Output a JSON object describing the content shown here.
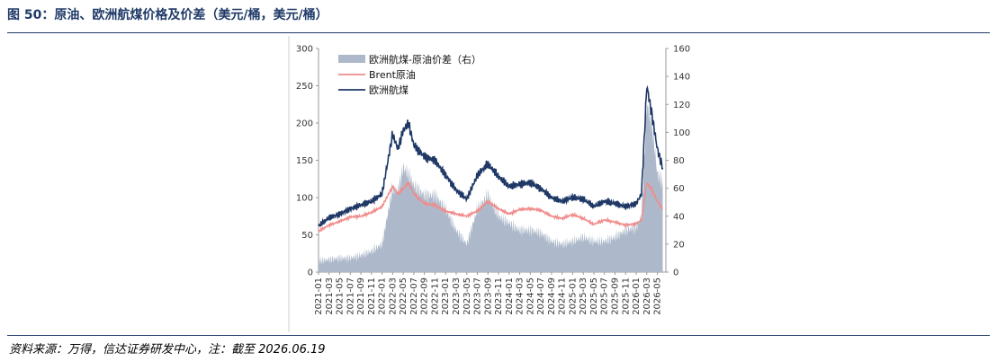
{
  "figure": {
    "title": "图 50：原油、欧洲航煤价格及价差（美元/桶，美元/桶）",
    "source": "资料来源：万得，信达证券研发中心，注：截至 2026.06.19"
  },
  "chart_data": {
    "type": "line",
    "x_tick_labels": [
      "2021-01",
      "2021-03",
      "2021-05",
      "2021-07",
      "2021-09",
      "2021-11",
      "2022-01",
      "2022-03",
      "2022-05",
      "2022-07",
      "2022-09",
      "2022-11",
      "2023-01",
      "2023-03",
      "2023-05",
      "2023-07",
      "2023-09",
      "2023-11",
      "2024-01",
      "2024-03",
      "2024-05",
      "2024-07",
      "2024-09",
      "2024-11",
      "2025-01",
      "2025-03",
      "2025-05",
      "2025-07",
      "2025-09",
      "2025-11",
      "2026-01",
      "2026-03",
      "2026-05"
    ],
    "left_axis": {
      "ylim": [
        0,
        300
      ],
      "ticks": [
        "0",
        "50",
        "100",
        "150",
        "200",
        "250",
        "300"
      ]
    },
    "right_axis": {
      "ylim": [
        0,
        160
      ],
      "ticks": [
        "0",
        "20",
        "40",
        "60",
        "80",
        "100",
        "120",
        "140",
        "160"
      ]
    },
    "legend_placement": "top-left",
    "series": [
      {
        "name": "欧洲航煤-原油价差（右）",
        "type": "area",
        "axis": "right",
        "color": "#adb9ca",
        "x": [
          "2021-01",
          "2021-03",
          "2021-05",
          "2021-07",
          "2021-09",
          "2021-11",
          "2022-01",
          "2022-03",
          "2022-04",
          "2022-05",
          "2022-06",
          "2022-07",
          "2022-09",
          "2022-11",
          "2023-01",
          "2023-03",
          "2023-05",
          "2023-07",
          "2023-09",
          "2023-11",
          "2024-01",
          "2024-03",
          "2024-05",
          "2024-07",
          "2024-09",
          "2024-11",
          "2025-01",
          "2025-03",
          "2025-05",
          "2025-07",
          "2025-09",
          "2025-11",
          "2026-01",
          "2026-02",
          "2026-03",
          "2026-04",
          "2026-05",
          "2026-06"
        ],
        "values": [
          8,
          9,
          10,
          10,
          12,
          15,
          20,
          60,
          58,
          75,
          70,
          62,
          55,
          55,
          45,
          30,
          20,
          45,
          55,
          40,
          35,
          30,
          30,
          28,
          22,
          20,
          22,
          25,
          22,
          22,
          25,
          30,
          32,
          40,
          120,
          105,
          70,
          65
        ]
      },
      {
        "name": "Brent原油",
        "type": "line",
        "axis": "left",
        "color": "#f08c8c",
        "x": [
          "2021-01",
          "2021-03",
          "2021-05",
          "2021-07",
          "2021-09",
          "2021-11",
          "2022-01",
          "2022-03",
          "2022-04",
          "2022-05",
          "2022-06",
          "2022-07",
          "2022-09",
          "2022-11",
          "2023-01",
          "2023-03",
          "2023-05",
          "2023-07",
          "2023-09",
          "2023-11",
          "2024-01",
          "2024-03",
          "2024-05",
          "2024-07",
          "2024-09",
          "2024-11",
          "2025-01",
          "2025-03",
          "2025-05",
          "2025-07",
          "2025-09",
          "2025-11",
          "2026-01",
          "2026-02",
          "2026-03",
          "2026-04",
          "2026-05",
          "2026-06"
        ],
        "values": [
          55,
          63,
          68,
          74,
          75,
          80,
          88,
          115,
          105,
          112,
          120,
          105,
          92,
          90,
          82,
          78,
          75,
          82,
          95,
          85,
          78,
          84,
          85,
          83,
          75,
          72,
          77,
          72,
          64,
          70,
          67,
          63,
          65,
          70,
          120,
          110,
          95,
          85
        ]
      },
      {
        "name": "欧洲航煤",
        "type": "line",
        "axis": "left",
        "color": "#1f3866",
        "x": [
          "2021-01",
          "2021-03",
          "2021-05",
          "2021-07",
          "2021-09",
          "2021-11",
          "2022-01",
          "2022-03",
          "2022-04",
          "2022-05",
          "2022-06",
          "2022-07",
          "2022-09",
          "2022-11",
          "2023-01",
          "2023-03",
          "2023-05",
          "2023-07",
          "2023-09",
          "2023-11",
          "2024-01",
          "2024-03",
          "2024-05",
          "2024-07",
          "2024-09",
          "2024-11",
          "2025-01",
          "2025-03",
          "2025-05",
          "2025-07",
          "2025-09",
          "2025-11",
          "2026-01",
          "2026-02",
          "2026-03",
          "2026-04",
          "2026-05",
          "2026-06"
        ],
        "values": [
          62,
          73,
          78,
          85,
          90,
          95,
          105,
          185,
          165,
          190,
          200,
          170,
          155,
          150,
          130,
          110,
          98,
          130,
          145,
          128,
          115,
          118,
          120,
          112,
          100,
          95,
          100,
          98,
          88,
          95,
          92,
          88,
          92,
          105,
          250,
          210,
          165,
          140
        ]
      }
    ]
  }
}
